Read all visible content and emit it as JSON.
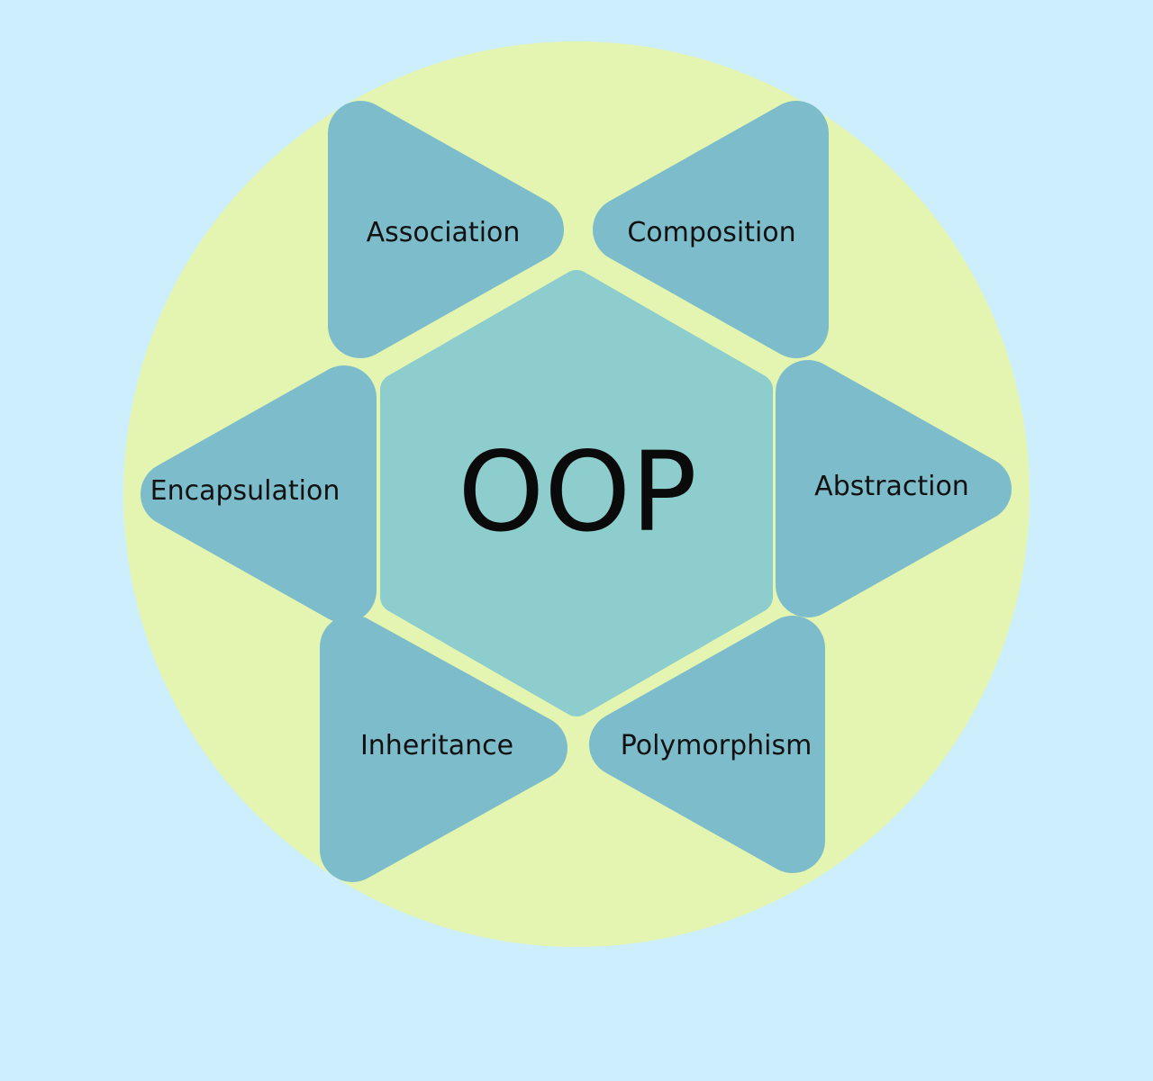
{
  "diagram": {
    "center_label": "OOP",
    "petals": [
      {
        "label": "Association"
      },
      {
        "label": "Composition"
      },
      {
        "label": "Encapsulation"
      },
      {
        "label": "Abstraction"
      },
      {
        "label": "Inheritance"
      },
      {
        "label": "Polymorphism"
      }
    ]
  },
  "colors": {
    "page_background": "#cdeefd",
    "outer_circle": "#e3f5b0",
    "center_hexagon": "#8dcdcd",
    "petal_fill": "#7dbdcb",
    "text": "#111111"
  }
}
